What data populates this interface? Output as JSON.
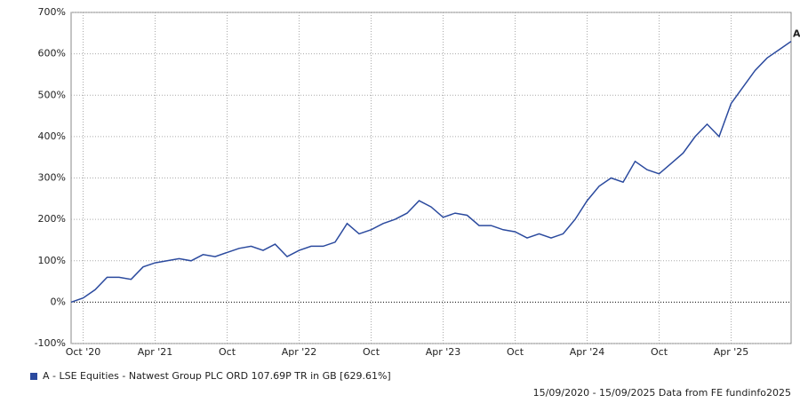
{
  "chart_data": {
    "type": "line",
    "x": [
      "2020-09",
      "2020-10",
      "2020-11",
      "2020-12",
      "2021-01",
      "2021-02",
      "2021-03",
      "2021-04",
      "2021-05",
      "2021-06",
      "2021-07",
      "2021-08",
      "2021-09",
      "2021-10",
      "2021-11",
      "2021-12",
      "2022-01",
      "2022-02",
      "2022-03",
      "2022-04",
      "2022-05",
      "2022-06",
      "2022-07",
      "2022-08",
      "2022-09",
      "2022-10",
      "2022-11",
      "2022-12",
      "2023-01",
      "2023-02",
      "2023-03",
      "2023-04",
      "2023-05",
      "2023-06",
      "2023-07",
      "2023-08",
      "2023-09",
      "2023-10",
      "2023-11",
      "2023-12",
      "2024-01",
      "2024-02",
      "2024-03",
      "2024-04",
      "2024-05",
      "2024-06",
      "2024-07",
      "2024-08",
      "2024-09",
      "2024-10",
      "2024-11",
      "2024-12",
      "2025-01",
      "2025-02",
      "2025-03",
      "2025-04",
      "2025-05",
      "2025-06",
      "2025-07",
      "2025-08",
      "2025-09"
    ],
    "series": [
      {
        "name": "A - LSE Equities - Natwest Group PLC ORD 107.69P TR in GB [629.61%]",
        "marker": "A",
        "color": "#2b4a9e",
        "values": [
          0,
          10,
          30,
          60,
          60,
          55,
          85,
          95,
          100,
          105,
          100,
          115,
          110,
          120,
          130,
          135,
          125,
          140,
          110,
          125,
          135,
          135,
          145,
          190,
          165,
          175,
          190,
          200,
          215,
          245,
          230,
          205,
          215,
          210,
          185,
          185,
          175,
          170,
          155,
          165,
          155,
          165,
          200,
          245,
          280,
          300,
          290,
          340,
          320,
          310,
          335,
          360,
          400,
          430,
          400,
          480,
          520,
          560,
          590,
          610,
          630
        ]
      }
    ],
    "xticks": [
      {
        "value": "2020-10",
        "label": "Oct '20"
      },
      {
        "value": "2021-04",
        "label": "Apr '21"
      },
      {
        "value": "2021-10",
        "label": "Oct"
      },
      {
        "value": "2022-04",
        "label": "Apr '22"
      },
      {
        "value": "2022-10",
        "label": "Oct"
      },
      {
        "value": "2023-04",
        "label": "Apr '23"
      },
      {
        "value": "2023-10",
        "label": "Oct"
      },
      {
        "value": "2024-04",
        "label": "Apr '24"
      },
      {
        "value": "2024-10",
        "label": "Oct"
      },
      {
        "value": "2025-04",
        "label": "Apr '25"
      }
    ],
    "ylim": [
      -100,
      700
    ],
    "yticks": [
      {
        "value": -100,
        "label": "-100%"
      },
      {
        "value": 0,
        "label": "0%"
      },
      {
        "value": 100,
        "label": "100%"
      },
      {
        "value": 200,
        "label": "200%"
      },
      {
        "value": 300,
        "label": "300%"
      },
      {
        "value": 400,
        "label": "400%"
      },
      {
        "value": 500,
        "label": "500%"
      },
      {
        "value": 600,
        "label": "600%"
      },
      {
        "value": 700,
        "label": "700%"
      }
    ],
    "grid": true,
    "footer": "15/09/2020 - 15/09/2025 Data from FE fundinfo2025"
  }
}
